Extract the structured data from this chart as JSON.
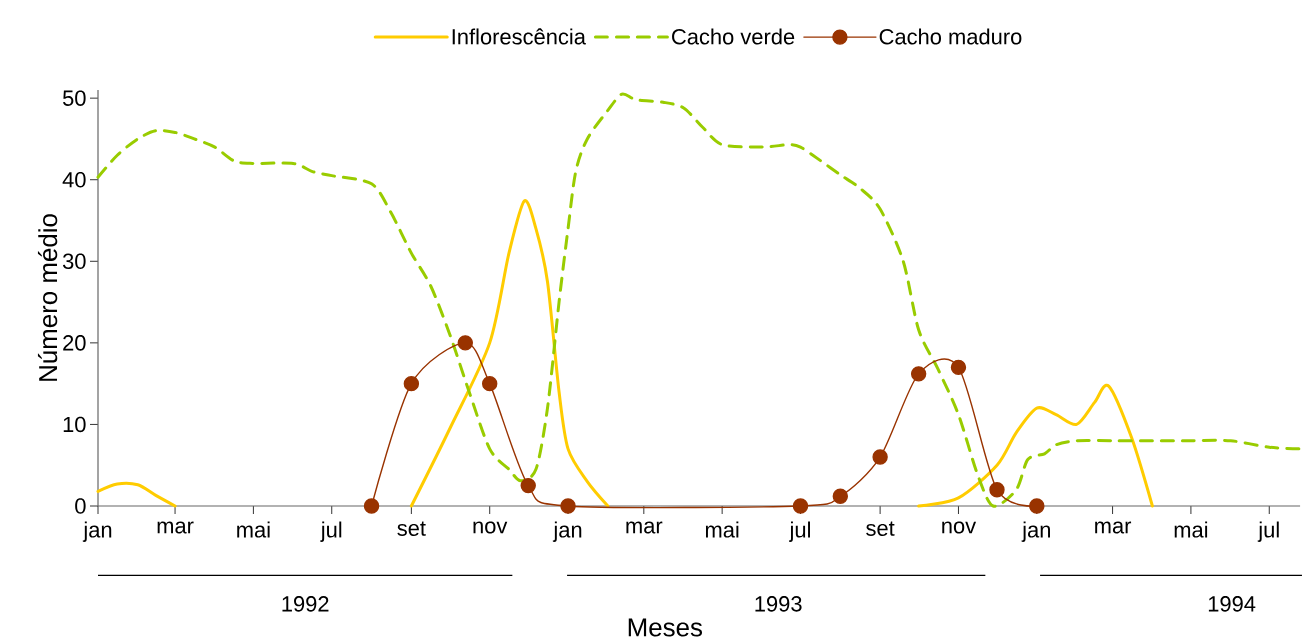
{
  "chart_data": {
    "type": "line",
    "xlabel": "Meses",
    "ylabel": "Número médio",
    "xlim": [
      "1992-01-01",
      "1994-07-25"
    ],
    "ylim": [
      0,
      51
    ],
    "yticks": [
      0,
      10,
      20,
      30,
      40,
      50
    ],
    "xticks": [
      {
        "value": "1992-01-01",
        "label": "jan"
      },
      {
        "value": "1992-03-01",
        "label": "mar"
      },
      {
        "value": "1992-05-01",
        "label": "mai"
      },
      {
        "value": "1992-07-01",
        "label": "jul"
      },
      {
        "value": "1992-09-01",
        "label": "set"
      },
      {
        "value": "1992-11-01",
        "label": "nov"
      },
      {
        "value": "1993-01-01",
        "label": "jan"
      },
      {
        "value": "1993-03-01",
        "label": "mar"
      },
      {
        "value": "1993-05-01",
        "label": "mai"
      },
      {
        "value": "1993-07-01",
        "label": "jul"
      },
      {
        "value": "1993-09-01",
        "label": "set"
      },
      {
        "value": "1993-11-01",
        "label": "nov"
      },
      {
        "value": "1994-01-01",
        "label": "jan"
      },
      {
        "value": "1994-03-01",
        "label": "mar"
      },
      {
        "value": "1994-05-01",
        "label": "mai"
      },
      {
        "value": "1994-07-01",
        "label": "jul"
      }
    ],
    "grid": false,
    "legend": "top",
    "annotations": [
      "1992",
      "1993",
      "1994"
    ],
    "series": [
      {
        "name": "Inflorescência",
        "color": "#ffcc00",
        "marker": "none",
        "line_style": "solid",
        "x": [
          "1992-01-01",
          "1992-01-16",
          "1992-02-01",
          "1992-02-15",
          "1992-03-01",
          "1992-03-16",
          "1992-09-01",
          "1992-10-01",
          "1992-11-01",
          "1992-11-16",
          "1992-11-28",
          "1992-12-07",
          "1992-12-16",
          "1992-12-25",
          "1993-01-01",
          "1993-01-16",
          "1993-02-01",
          "1993-06-01",
          "1993-10-01",
          "1993-11-01",
          "1993-12-01",
          "1993-12-16",
          "1994-01-01",
          "1994-01-16",
          "1994-02-01",
          "1994-02-15",
          "1994-02-26",
          "1994-03-16",
          "1994-04-01"
        ],
        "values": [
          1.8,
          2.7,
          2.6,
          1.3,
          0,
          null,
          0,
          9.5,
          20,
          31,
          37.4,
          34,
          27.5,
          14,
          7,
          3,
          0,
          null,
          0,
          1,
          5,
          9,
          12,
          11.2,
          10,
          12.7,
          14.7,
          8.3,
          0
        ]
      },
      {
        "name": "Cacho verde",
        "color": "#99cc00",
        "marker": "none",
        "line_style": "dashed",
        "x": [
          "1992-01-01",
          "1992-01-16",
          "1992-02-01",
          "1992-02-15",
          "1992-03-01",
          "1992-03-16",
          "1992-04-01",
          "1992-04-16",
          "1992-05-01",
          "1992-06-01",
          "1992-06-16",
          "1992-07-01",
          "1992-08-01",
          "1992-08-16",
          "1992-09-01",
          "1992-09-16",
          "1992-10-01",
          "1992-10-16",
          "1992-11-01",
          "1992-11-16",
          "1992-11-25",
          "1992-12-07",
          "1992-12-16",
          "1992-12-25",
          "1993-01-01",
          "1993-01-07",
          "1993-01-16",
          "1993-02-01",
          "1993-02-12",
          "1993-02-23",
          "1993-03-16",
          "1993-04-01",
          "1993-04-16",
          "1993-05-01",
          "1993-06-01",
          "1993-06-22",
          "1993-07-01",
          "1993-07-16",
          "1993-08-01",
          "1993-08-16",
          "1993-09-01",
          "1993-09-19",
          "1993-10-01",
          "1993-10-16",
          "1993-11-01",
          "1993-11-16",
          "1993-11-28",
          "1993-12-16",
          "1993-12-25",
          "1994-01-07",
          "1994-01-16",
          "1994-02-01",
          "1994-03-01",
          "1994-04-01",
          "1994-05-01",
          "1994-06-01",
          "1994-07-01",
          "1994-07-25"
        ],
        "values": [
          40.3,
          43,
          45,
          46,
          45.8,
          45,
          44,
          42.3,
          42,
          42,
          41,
          40.5,
          39.5,
          36,
          31,
          27,
          21,
          14,
          7,
          4.5,
          3.1,
          4.5,
          12,
          25,
          34,
          41,
          45,
          48.5,
          50.5,
          49.8,
          49.5,
          48.8,
          46.4,
          44.3,
          44,
          44.3,
          44,
          42.4,
          40.6,
          39,
          36.4,
          30,
          21.6,
          16.8,
          11.2,
          3.8,
          0,
          2,
          5.7,
          6.4,
          7.5,
          8,
          8,
          8,
          8,
          8,
          7.2,
          7
        ]
      },
      {
        "name": "Cacho maduro",
        "color": "#993300",
        "marker": "circle",
        "line_style": "solid",
        "x": [
          "1992-08-01",
          "1992-09-01",
          "1992-10-13",
          "1992-11-01",
          "1992-12-01",
          "1993-01-01",
          "1993-07-01",
          "1993-08-01",
          "1993-09-01",
          "1993-10-01",
          "1993-11-01",
          "1993-12-01",
          "1994-01-01"
        ],
        "values": [
          0,
          15,
          20,
          15,
          2.5,
          0,
          0,
          1.2,
          6,
          16.2,
          17,
          2,
          0
        ]
      }
    ]
  }
}
